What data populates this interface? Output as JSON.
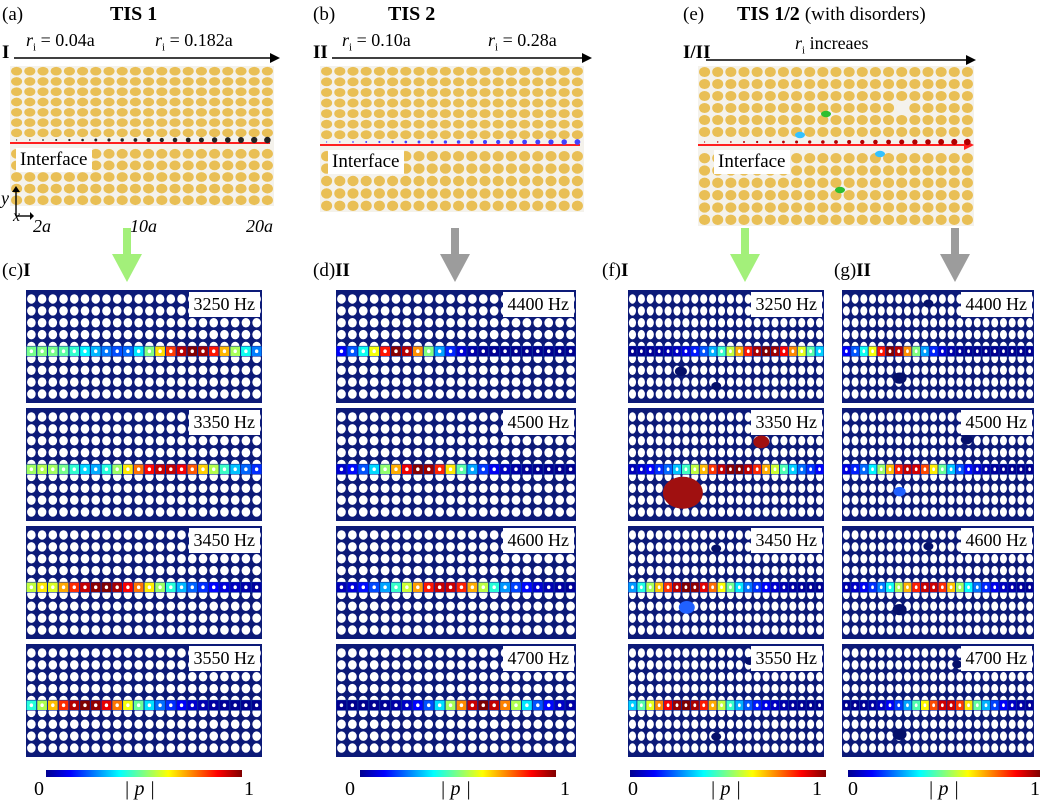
{
  "panels": {
    "a": {
      "tag": "(a)",
      "title": "TIS 1",
      "roman": "I",
      "r_left_prefix": "r",
      "r_left_sub": "i",
      "r_left_value": " = 0.04a",
      "r_right_prefix": "r",
      "r_right_sub": "i",
      "r_right_value": " = 0.182a",
      "interface": "Interface",
      "axis_y": "y",
      "axis_x": "x",
      "ticks": [
        "2a",
        "10a",
        "20a"
      ]
    },
    "b": {
      "tag": "(b)",
      "title": "TIS 2",
      "roman": "II",
      "r_left_prefix": "r",
      "r_left_sub": "i",
      "r_left_value": " = 0.10a",
      "r_right_prefix": "r",
      "r_right_sub": "i",
      "r_right_value": " = 0.28a",
      "interface": "Interface"
    },
    "e": {
      "tag": "(e)",
      "title": "TIS 1/2",
      "title_note": "(with disorders)",
      "roman": "I/II",
      "r_prefix": "r",
      "r_sub": "i",
      "r_text": " increaes",
      "interface": "Interface"
    },
    "c": {
      "tag": "(c)",
      "roman": "I",
      "freqs": [
        "3250 Hz",
        "3350 Hz",
        "3450 Hz",
        "3550 Hz"
      ]
    },
    "d": {
      "tag": "(d)",
      "roman": "II",
      "freqs": [
        "4400 Hz",
        "4500 Hz",
        "4600 Hz",
        "4700 Hz"
      ]
    },
    "f": {
      "tag": "(f)",
      "roman": "I",
      "freqs": [
        "3250 Hz",
        "3350 Hz",
        "3450 Hz",
        "3550 Hz"
      ]
    },
    "g": {
      "tag": "(g)",
      "roman": "II",
      "freqs": [
        "4400 Hz",
        "4500 Hz",
        "4600 Hz",
        "4700 Hz"
      ]
    }
  },
  "colorbar": {
    "min": "0",
    "max": "1",
    "label": "| p |"
  },
  "colors": {
    "gold": "#e9bf55",
    "navy": "#0c1a78",
    "red": "#ff1f1f",
    "green_arrow": "#a3f07a",
    "gray_arrow": "#9c9c9c"
  }
}
